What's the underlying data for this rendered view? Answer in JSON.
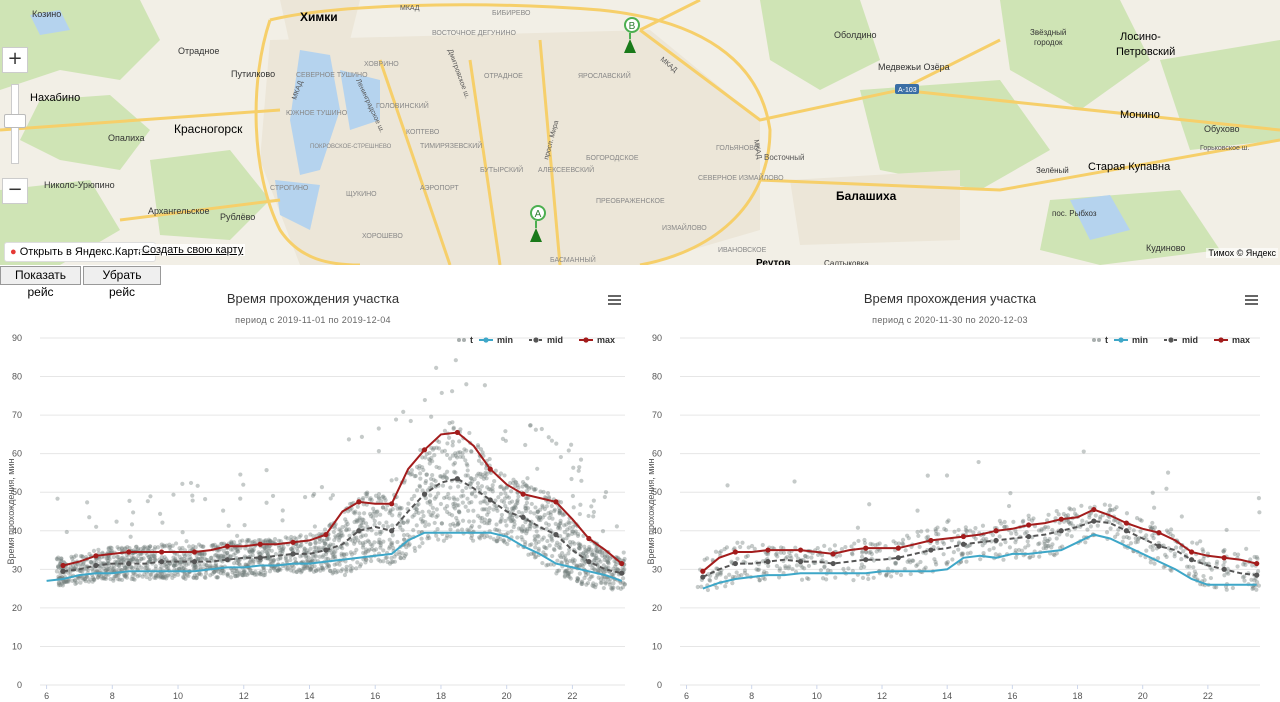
{
  "map": {
    "open_link": "Открыть в Яндекс.Картах",
    "create_link": "Создать свою карту",
    "copyright": "Тимох © Яндекс",
    "zoom_in": "+",
    "zoom_out": "−",
    "markers": [
      {
        "label": "A"
      },
      {
        "label": "B"
      }
    ],
    "place_labels": {
      "khimki": "Химки",
      "nakhabino": "Нахабино",
      "krasnogorsk": "Красногорск",
      "balashikha": "Балашиха",
      "monino": "Монино",
      "staraya_kupavna": "Старая Купавна",
      "losino": "Лосино-",
      "losino2": "Петровский",
      "kozino": "Козино",
      "otradnoe": "Отрадное",
      "putilkovo": "Путилково",
      "opalikha": "Опалиха",
      "nikolo": "Николо-Урюпино",
      "arkhangelskoe": "Архангельское",
      "rublevo": "Рублёво",
      "oboldino": "Оболдино",
      "medvezhi": "Медвежьи Озёра",
      "zvezdny": "Звёздный",
      "gorodok": "городок",
      "obukhovo": "Обухово",
      "zeleny": "Зелёный",
      "rybkhoz": "пос. Рыбхоз",
      "kudinovo": "Кудиново",
      "reutov": "Реутов",
      "saltykovka": "Салтыковка",
      "gorkovskoe": "Горьковское ш.",
      "a103": "А-103",
      "mkad": "МКАД",
      "vostochny": "Восточный",
      "tushino": "СЕВЕРНОЕ ТУШИНО",
      "yuzh_tushino": "ЮЖНОЕ ТУШИНО",
      "pokrovskoe": "ПОКРОВСКОЕ-СТРЕШНЕВО",
      "khovrino": "ХОВРИНО",
      "golovinsky": "ГОЛОВИНСКИЙ",
      "koptevo": "КОПТЕВО",
      "timiryazevsky": "ТИМИРЯЗЕВСКИЙ",
      "aeroport": "АЭРОПОРТ",
      "shchukino": "ЩУКИНО",
      "strogino": "СТРОГИНО",
      "khoroshevo": "ХОРОШЕВО",
      "butyrsky": "БУТЫРСКИЙ",
      "alekseevsky": "АЛЕКСЕЕВСКИЙ",
      "bogorodskoe": "БОГОРОДСКОЕ",
      "preobrazhenskoe": "ПРЕОБРАЖЕНСКОЕ",
      "izmailovo": "ИЗМАЙЛОВО",
      "sev_izmailovo": "СЕВЕРНОЕ ИЗМАЙЛОВО",
      "golyanovo": "ГОЛЬЯНОВО",
      "yaroslavsky": "ЯРОСЛАВСКИЙ",
      "otradnoe_d": "ОТРАДНОЕ",
      "bibirevo": "БИБИРЕВО",
      "degunino": "ВОСТОЧНОЕ ДЕГУНИНО",
      "basmanny": "БАСМАННЫЙ",
      "ivanovskoe": "ИВАНОВСКОЕ",
      "prosp_mira": "просп. Мира",
      "dmitrovskoe": "Дмитровское ш.",
      "leningradskoe": "Ленинградское ш."
    }
  },
  "buttons": {
    "show": "Показать рейс",
    "hide": "Убрать рейс"
  },
  "charts": [
    {
      "title": "Время прохождения участка",
      "subtitle": "период с 2019-11-01 по 2019-12-04",
      "ylabel": "Время прохождения, мин",
      "legend": [
        "t",
        "min",
        "mid",
        "max"
      ]
    },
    {
      "title": "Время прохождения участка",
      "subtitle": "период с 2020-11-30 по 2020-12-03",
      "ylabel": "Время прохождения, мин",
      "legend": [
        "t",
        "min",
        "mid",
        "max"
      ]
    }
  ],
  "colors": {
    "min": "#3ea7c8",
    "mid": "#555555",
    "max": "#a31c1c",
    "scatter": "#6f7a78"
  },
  "chart_data": [
    {
      "type": "line",
      "title": "Время прохождения участка",
      "subtitle": "период с 2019-11-01 по 2019-12-04",
      "xlabel": "",
      "ylabel": "Время прохождения, мин",
      "xlim": [
        5.8,
        23.6
      ],
      "ylim": [
        0,
        90
      ],
      "xticks": [
        6,
        8,
        10,
        12,
        14,
        16,
        18,
        20,
        22
      ],
      "yticks": [
        0,
        10,
        20,
        30,
        40,
        50,
        60,
        70,
        80,
        90
      ],
      "grid": true,
      "legend": "top-right",
      "series": [
        {
          "name": "max",
          "x": [
            6.5,
            7.0,
            7.5,
            8.0,
            8.5,
            9.0,
            9.5,
            10.0,
            10.5,
            11.0,
            11.5,
            12.0,
            12.5,
            13.0,
            13.5,
            14.0,
            14.5,
            15.0,
            15.5,
            16.0,
            16.5,
            17.0,
            17.5,
            18.0,
            18.5,
            19.0,
            19.5,
            20.0,
            20.5,
            21.0,
            21.5,
            22.0,
            22.5,
            23.0,
            23.5
          ],
          "values": [
            31,
            32,
            33.5,
            34,
            34.5,
            34.5,
            34.5,
            34.5,
            34.5,
            35,
            36,
            36,
            36.5,
            36.5,
            37,
            37.5,
            39,
            45,
            47.5,
            47,
            47,
            56,
            61,
            65,
            65.5,
            62,
            56,
            52,
            49.5,
            48.5,
            47.5,
            43,
            38,
            35,
            31.5
          ]
        },
        {
          "name": "mid",
          "x": [
            6.5,
            7.0,
            7.5,
            8.0,
            8.5,
            9.0,
            9.5,
            10.0,
            10.5,
            11.0,
            11.5,
            12.0,
            12.5,
            13.0,
            13.5,
            14.0,
            14.5,
            15.0,
            15.5,
            16.0,
            16.5,
            17.0,
            17.5,
            18.0,
            18.5,
            19.0,
            19.5,
            20.0,
            20.5,
            21.0,
            21.5,
            22.0,
            22.5,
            23.0,
            23.5
          ],
          "values": [
            29.5,
            30,
            31,
            31.5,
            31.5,
            31.5,
            32,
            32,
            32,
            32,
            32.5,
            33,
            33,
            33.5,
            34,
            34,
            35,
            36.5,
            40,
            41,
            40,
            45,
            49.5,
            52.5,
            53.5,
            51,
            48,
            45,
            43.5,
            41,
            39,
            35,
            32,
            30,
            29
          ]
        },
        {
          "name": "min",
          "x": [
            6.0,
            6.5,
            7.0,
            7.5,
            8.0,
            8.5,
            9.0,
            9.5,
            10.0,
            10.5,
            11.0,
            11.5,
            12.0,
            12.5,
            13.0,
            13.5,
            14.0,
            14.5,
            15.0,
            15.5,
            16.0,
            16.5,
            17.0,
            17.5,
            18.0,
            18.5,
            19.0,
            19.5,
            20.0,
            20.5,
            21.0,
            21.5,
            22.0,
            22.5,
            23.0,
            23.5
          ],
          "values": [
            27,
            27.5,
            28.5,
            29,
            29,
            29.5,
            29.5,
            29.5,
            29.5,
            29.5,
            30,
            30.5,
            30.5,
            31,
            31,
            31.5,
            31.5,
            32,
            32.5,
            33,
            33.5,
            34,
            37.5,
            39.5,
            39.5,
            39.5,
            39.5,
            39.5,
            38.5,
            36,
            34,
            31.5,
            30.5,
            29.5,
            28.5,
            27
          ]
        }
      ]
    },
    {
      "type": "line",
      "title": "Время прохождения участка",
      "subtitle": "период с 2020-11-30 по 2020-12-03",
      "xlabel": "",
      "ylabel": "Время прохождения, мин",
      "xlim": [
        5.8,
        23.6
      ],
      "ylim": [
        0,
        90
      ],
      "xticks": [
        6,
        8,
        10,
        12,
        14,
        16,
        18,
        20,
        22
      ],
      "yticks": [
        0,
        10,
        20,
        30,
        40,
        50,
        60,
        70,
        80,
        90
      ],
      "grid": true,
      "legend": "top-right",
      "series": [
        {
          "name": "max",
          "x": [
            6.5,
            7.0,
            7.5,
            8.0,
            8.5,
            9.0,
            9.5,
            10.0,
            10.5,
            11.0,
            11.5,
            12.0,
            12.5,
            13.0,
            13.5,
            14.0,
            14.5,
            15.0,
            15.5,
            16.0,
            16.5,
            17.0,
            17.5,
            18.0,
            18.5,
            19.0,
            19.5,
            20.0,
            20.5,
            21.0,
            21.5,
            22.0,
            22.5,
            23.0,
            23.5
          ],
          "values": [
            29.5,
            33,
            34.5,
            34.5,
            35,
            35,
            35,
            34.5,
            34,
            35,
            35.5,
            35.5,
            35.5,
            36.5,
            37.5,
            38,
            38.5,
            39,
            40,
            40.5,
            41.5,
            42,
            43,
            43.5,
            45.5,
            44,
            42,
            40.5,
            39.5,
            37.5,
            34.5,
            33.5,
            33,
            32.5,
            31.5
          ]
        },
        {
          "name": "mid",
          "x": [
            6.5,
            7.0,
            7.5,
            8.0,
            8.5,
            9.0,
            9.5,
            10.0,
            10.5,
            11.0,
            11.5,
            12.0,
            12.5,
            13.0,
            13.5,
            14.0,
            14.5,
            15.0,
            15.5,
            16.0,
            16.5,
            17.0,
            17.5,
            18.0,
            18.5,
            19.0,
            19.5,
            20.0,
            20.5,
            21.0,
            21.5,
            22.0,
            22.5,
            23.0,
            23.5
          ],
          "values": [
            28,
            30,
            31.5,
            31.5,
            32,
            32.5,
            32,
            32,
            31.5,
            32,
            32.5,
            32.5,
            33,
            34,
            35,
            35.5,
            36.5,
            37,
            37.5,
            38,
            38.5,
            39,
            40,
            41,
            42.5,
            42,
            40,
            38,
            36,
            35,
            32.5,
            31,
            30,
            29,
            28.5
          ]
        },
        {
          "name": "min",
          "x": [
            6.5,
            7.0,
            7.5,
            8.0,
            8.5,
            9.0,
            9.5,
            10.0,
            10.5,
            11.0,
            11.5,
            12.0,
            12.5,
            13.0,
            13.5,
            14.0,
            14.5,
            15.0,
            15.5,
            16.0,
            16.5,
            17.0,
            17.5,
            18.0,
            18.5,
            19.0,
            19.5,
            20.0,
            20.5,
            21.0,
            21.5,
            22.0,
            22.5,
            23.0,
            23.5
          ],
          "values": [
            25,
            26.5,
            27.5,
            28,
            28.5,
            28.5,
            29,
            29,
            29,
            29,
            29,
            29.5,
            29.5,
            29.5,
            29.5,
            30,
            33,
            33.5,
            33,
            34,
            34,
            34.5,
            35,
            37,
            39,
            38,
            36,
            34,
            32,
            30,
            27.5,
            26,
            26,
            26,
            26
          ]
        }
      ]
    }
  ]
}
